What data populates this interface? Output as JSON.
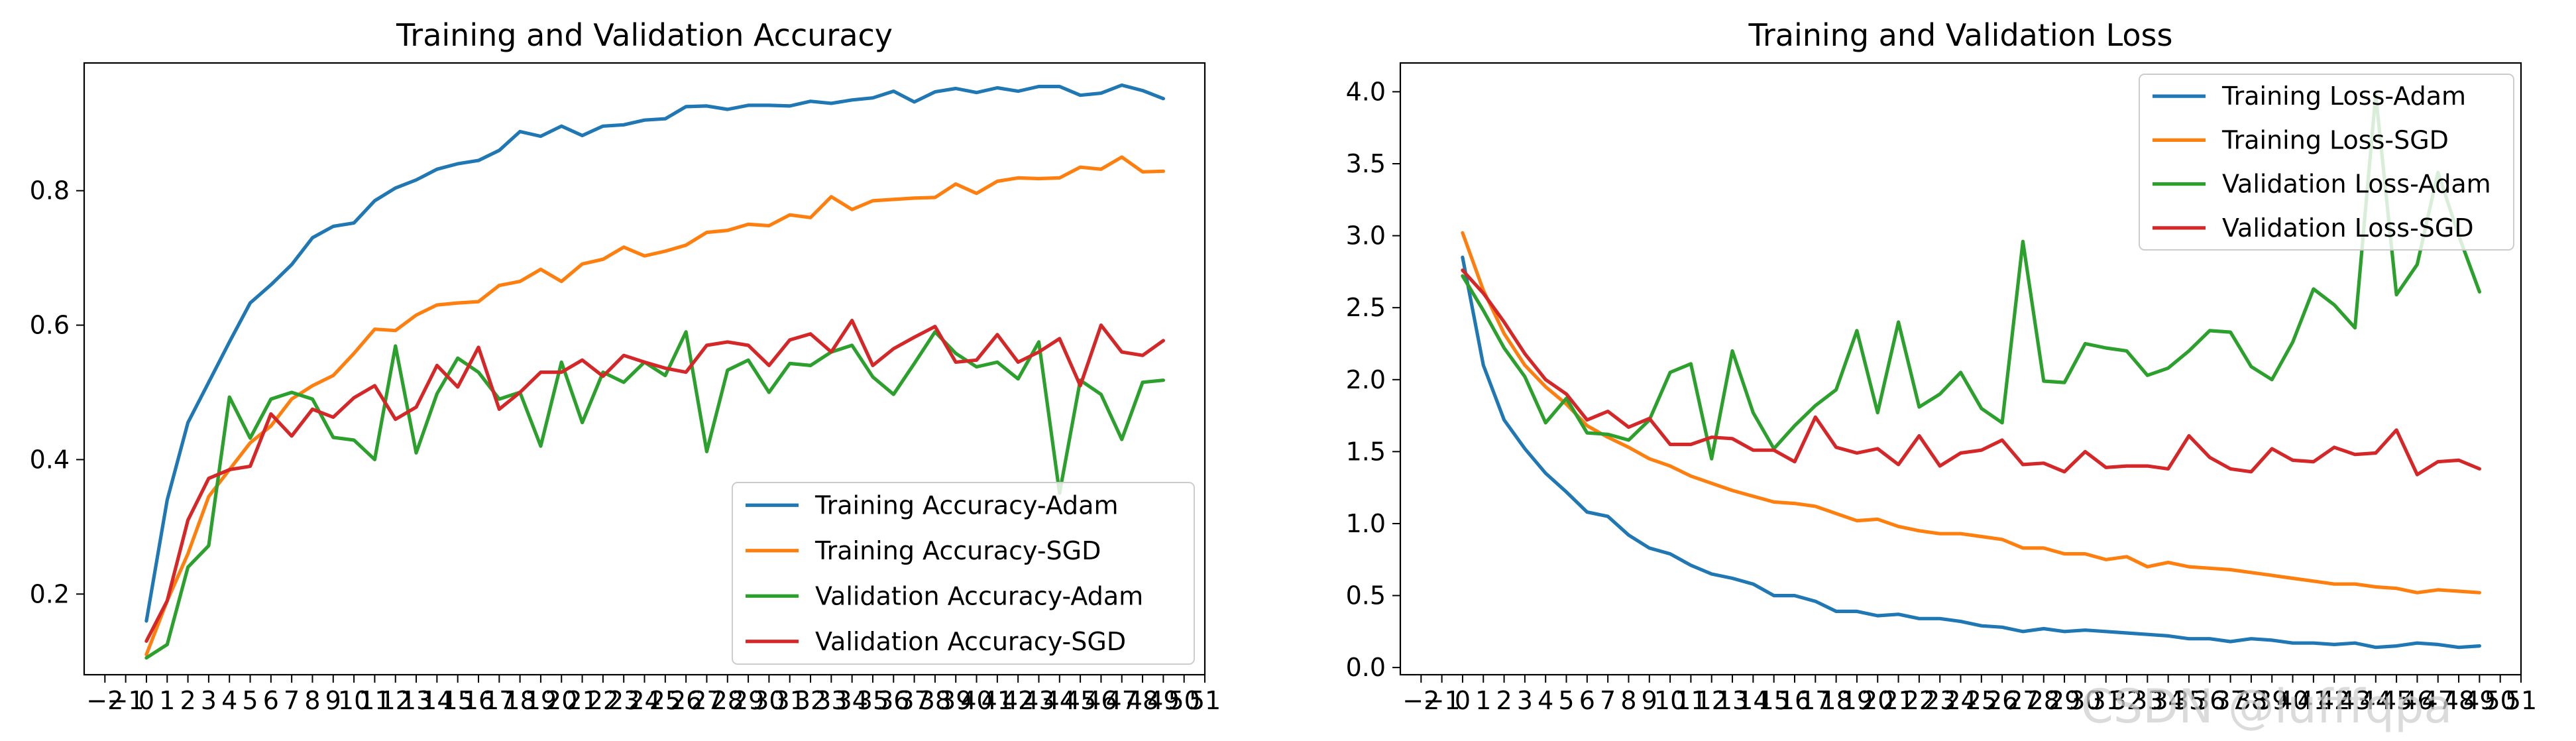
{
  "watermark": "CSDN @lufffqpa",
  "chart_data": [
    {
      "type": "line",
      "title": "Training and Validation Accuracy",
      "xlabel": "",
      "ylabel": "",
      "xlim": [
        -3,
        51
      ],
      "ylim": [
        0.08,
        0.99
      ],
      "x_ticks": [
        -2,
        -1,
        0,
        1,
        2,
        3,
        4,
        5,
        6,
        7,
        8,
        9,
        10,
        11,
        12,
        13,
        14,
        15,
        16,
        17,
        18,
        19,
        20,
        21,
        22,
        23,
        24,
        25,
        26,
        27,
        28,
        29,
        30,
        31,
        32,
        33,
        34,
        35,
        36,
        37,
        38,
        39,
        40,
        41,
        42,
        43,
        44,
        45,
        46,
        47,
        48,
        49,
        50,
        51
      ],
      "x_tick_labels": [
        "−2",
        "−1",
        "0",
        "1",
        "2",
        "3",
        "4",
        "5",
        "6",
        "7",
        "8",
        "9",
        "10",
        "11",
        "12",
        "13",
        "14",
        "15",
        "16",
        "17",
        "18",
        "19",
        "20",
        "21",
        "22",
        "23",
        "24",
        "25",
        "26",
        "27",
        "28",
        "29",
        "30",
        "31",
        "32",
        "33",
        "34",
        "35",
        "36",
        "37",
        "38",
        "39",
        "40",
        "41",
        "42",
        "43",
        "44",
        "45",
        "46",
        "47",
        "48",
        "49",
        "50",
        "51"
      ],
      "y_ticks": [
        0.2,
        0.4,
        0.6,
        0.8
      ],
      "y_tick_labels": [
        "0.2",
        "0.4",
        "0.6",
        "0.8"
      ],
      "grid": false,
      "legend_position": "lower-right",
      "x": [
        0,
        1,
        2,
        3,
        4,
        5,
        6,
        7,
        8,
        9,
        10,
        11,
        12,
        13,
        14,
        15,
        16,
        17,
        18,
        19,
        20,
        21,
        22,
        23,
        24,
        25,
        26,
        27,
        28,
        29,
        30,
        31,
        32,
        33,
        34,
        35,
        36,
        37,
        38,
        39,
        40,
        41,
        42,
        43,
        44,
        45,
        46,
        47,
        48,
        49
      ],
      "series": [
        {
          "name": "Training Accuracy-Adam",
          "color": "#1f77b4",
          "values": [
            0.16,
            0.34,
            0.455,
            0.515,
            0.575,
            0.633,
            0.66,
            0.69,
            0.73,
            0.747,
            0.752,
            0.785,
            0.804,
            0.816,
            0.832,
            0.84,
            0.845,
            0.86,
            0.888,
            0.881,
            0.896,
            0.882,
            0.896,
            0.898,
            0.905,
            0.907,
            0.925,
            0.926,
            0.921,
            0.927,
            0.927,
            0.926,
            0.933,
            0.93,
            0.935,
            0.938,
            0.948,
            0.932,
            0.947,
            0.952,
            0.946,
            0.953,
            0.948,
            0.955,
            0.955,
            0.942,
            0.945,
            0.957,
            0.949,
            0.937
          ]
        },
        {
          "name": "Training Accuracy-SGD",
          "color": "#ff7f0e",
          "values": [
            0.11,
            0.19,
            0.26,
            0.345,
            0.385,
            0.425,
            0.45,
            0.49,
            0.51,
            0.525,
            0.558,
            0.594,
            0.592,
            0.615,
            0.63,
            0.633,
            0.635,
            0.659,
            0.665,
            0.683,
            0.665,
            0.691,
            0.698,
            0.716,
            0.703,
            0.71,
            0.719,
            0.738,
            0.741,
            0.75,
            0.748,
            0.764,
            0.76,
            0.791,
            0.772,
            0.785,
            0.787,
            0.789,
            0.79,
            0.81,
            0.796,
            0.814,
            0.819,
            0.818,
            0.819,
            0.835,
            0.832,
            0.85,
            0.828,
            0.829
          ]
        },
        {
          "name": "Validation Accuracy-Adam",
          "color": "#2ca02c",
          "values": [
            0.105,
            0.125,
            0.24,
            0.272,
            0.493,
            0.432,
            0.49,
            0.5,
            0.49,
            0.433,
            0.429,
            0.4,
            0.569,
            0.41,
            0.498,
            0.551,
            0.53,
            0.49,
            0.5,
            0.42,
            0.545,
            0.455,
            0.53,
            0.515,
            0.545,
            0.525,
            0.59,
            0.412,
            0.533,
            0.548,
            0.5,
            0.543,
            0.54,
            0.56,
            0.57,
            0.523,
            0.497,
            0.543,
            0.59,
            0.558,
            0.538,
            0.545,
            0.52,
            0.575,
            0.35,
            0.518,
            0.497,
            0.43,
            0.515,
            0.518
          ]
        },
        {
          "name": "Validation Accuracy-SGD",
          "color": "#d62728",
          "values": [
            0.13,
            0.19,
            0.31,
            0.372,
            0.385,
            0.39,
            0.468,
            0.435,
            0.475,
            0.463,
            0.492,
            0.51,
            0.46,
            0.478,
            0.54,
            0.508,
            0.567,
            0.475,
            0.5,
            0.53,
            0.53,
            0.548,
            0.524,
            0.555,
            0.545,
            0.536,
            0.53,
            0.57,
            0.575,
            0.57,
            0.54,
            0.578,
            0.587,
            0.56,
            0.607,
            0.54,
            0.565,
            0.582,
            0.598,
            0.545,
            0.548,
            0.586,
            0.545,
            0.56,
            0.58,
            0.51,
            0.6,
            0.56,
            0.555,
            0.577
          ]
        }
      ]
    },
    {
      "type": "line",
      "title": "Training and Validation Loss",
      "xlabel": "",
      "ylabel": "",
      "xlim": [
        -3,
        51
      ],
      "ylim": [
        -0.05,
        4.2
      ],
      "x_ticks": [
        -2,
        -1,
        0,
        1,
        2,
        3,
        4,
        5,
        6,
        7,
        8,
        9,
        10,
        11,
        12,
        13,
        14,
        15,
        16,
        17,
        18,
        19,
        20,
        21,
        22,
        23,
        24,
        25,
        26,
        27,
        28,
        29,
        30,
        31,
        32,
        33,
        34,
        35,
        36,
        37,
        38,
        39,
        40,
        41,
        42,
        43,
        44,
        45,
        46,
        47,
        48,
        49,
        50,
        51
      ],
      "x_tick_labels": [
        "−2",
        "−1",
        "0",
        "1",
        "2",
        "3",
        "4",
        "5",
        "6",
        "7",
        "8",
        "9",
        "10",
        "11",
        "12",
        "13",
        "14",
        "15",
        "16",
        "17",
        "18",
        "19",
        "20",
        "21",
        "22",
        "23",
        "24",
        "25",
        "26",
        "27",
        "28",
        "29",
        "30",
        "31",
        "32",
        "33",
        "34",
        "35",
        "36",
        "37",
        "38",
        "39",
        "40",
        "41",
        "42",
        "43",
        "44",
        "45",
        "46",
        "47",
        "48",
        "49",
        "50",
        "51"
      ],
      "y_ticks": [
        0.0,
        0.5,
        1.0,
        1.5,
        2.0,
        2.5,
        3.0,
        3.5,
        4.0
      ],
      "y_tick_labels": [
        "0.0",
        "0.5",
        "1.0",
        "1.5",
        "2.0",
        "2.5",
        "3.0",
        "3.5",
        "4.0"
      ],
      "grid": false,
      "legend_position": "upper-right",
      "x": [
        0,
        1,
        2,
        3,
        4,
        5,
        6,
        7,
        8,
        9,
        10,
        11,
        12,
        13,
        14,
        15,
        16,
        17,
        18,
        19,
        20,
        21,
        22,
        23,
        24,
        25,
        26,
        27,
        28,
        29,
        30,
        31,
        32,
        33,
        34,
        35,
        36,
        37,
        38,
        39,
        40,
        41,
        42,
        43,
        44,
        45,
        46,
        47,
        48,
        49
      ],
      "series": [
        {
          "name": "Training Loss-Adam",
          "color": "#1f77b4",
          "values": [
            2.85,
            2.1,
            1.72,
            1.52,
            1.35,
            1.22,
            1.08,
            1.05,
            0.92,
            0.83,
            0.79,
            0.71,
            0.65,
            0.62,
            0.58,
            0.5,
            0.5,
            0.46,
            0.39,
            0.39,
            0.36,
            0.37,
            0.34,
            0.34,
            0.32,
            0.29,
            0.28,
            0.25,
            0.27,
            0.25,
            0.26,
            0.25,
            0.24,
            0.23,
            0.22,
            0.2,
            0.2,
            0.18,
            0.2,
            0.19,
            0.17,
            0.17,
            0.16,
            0.17,
            0.14,
            0.15,
            0.17,
            0.16,
            0.14,
            0.15
          ]
        },
        {
          "name": "Training Loss-SGD",
          "color": "#ff7f0e",
          "values": [
            3.02,
            2.62,
            2.32,
            2.1,
            1.95,
            1.83,
            1.68,
            1.6,
            1.53,
            1.45,
            1.4,
            1.33,
            1.28,
            1.23,
            1.19,
            1.15,
            1.14,
            1.12,
            1.07,
            1.02,
            1.03,
            0.98,
            0.95,
            0.93,
            0.93,
            0.91,
            0.89,
            0.83,
            0.83,
            0.79,
            0.79,
            0.75,
            0.77,
            0.7,
            0.73,
            0.7,
            0.69,
            0.68,
            0.66,
            0.64,
            0.62,
            0.6,
            0.58,
            0.58,
            0.56,
            0.55,
            0.52,
            0.54,
            0.53,
            0.52
          ]
        },
        {
          "name": "Validation Loss-Adam",
          "color": "#2ca02c",
          "values": [
            2.72,
            2.48,
            2.22,
            2.02,
            1.7,
            1.87,
            1.63,
            1.62,
            1.58,
            1.72,
            2.05,
            2.11,
            1.45,
            2.2,
            1.77,
            1.52,
            1.68,
            1.82,
            1.93,
            2.34,
            1.77,
            2.4,
            1.81,
            1.9,
            2.05,
            1.8,
            1.7,
            2.96,
            1.99,
            1.98,
            2.25,
            2.22,
            2.2,
            2.03,
            2.08,
            2.2,
            2.34,
            2.33,
            2.09,
            2.0,
            2.26,
            2.63,
            2.52,
            2.36,
            3.98,
            2.59,
            2.8,
            3.44,
            3.0,
            2.61
          ]
        },
        {
          "name": "Validation Loss-SGD",
          "color": "#d62728",
          "values": [
            2.76,
            2.6,
            2.4,
            2.18,
            2.0,
            1.9,
            1.72,
            1.78,
            1.67,
            1.73,
            1.55,
            1.55,
            1.6,
            1.59,
            1.51,
            1.51,
            1.43,
            1.74,
            1.53,
            1.49,
            1.52,
            1.41,
            1.61,
            1.4,
            1.49,
            1.51,
            1.58,
            1.41,
            1.42,
            1.36,
            1.5,
            1.39,
            1.4,
            1.4,
            1.38,
            1.61,
            1.46,
            1.38,
            1.36,
            1.52,
            1.44,
            1.43,
            1.53,
            1.48,
            1.49,
            1.65,
            1.34,
            1.43,
            1.44,
            1.38
          ]
        }
      ]
    }
  ]
}
